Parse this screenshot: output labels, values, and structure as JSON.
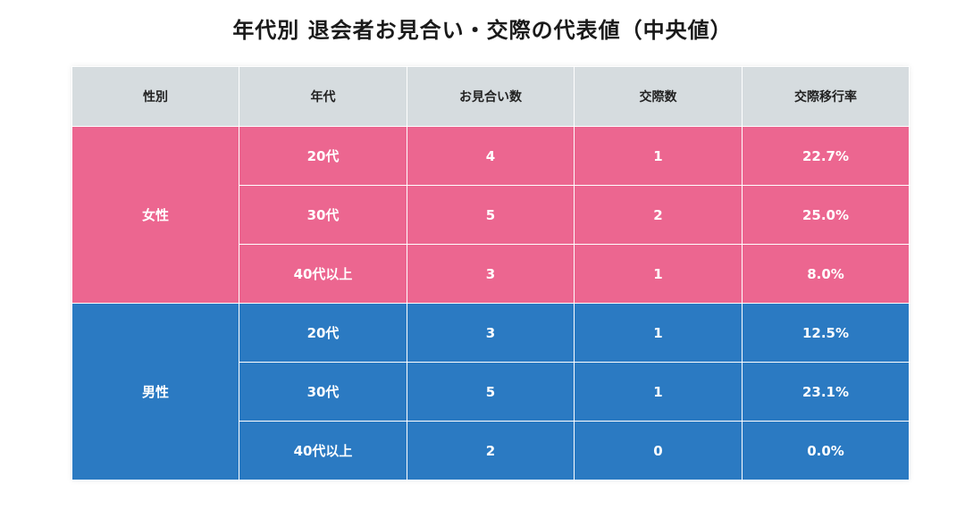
{
  "title": "年代別 退会者お見合い・交際の代表値（中央値）",
  "colors": {
    "header_bg": "#d6dcdf",
    "female": "#ec6690",
    "male": "#2b7ac2"
  },
  "chart_data": {
    "type": "table",
    "title": "年代別 退会者お見合い・交際の代表値（中央値）",
    "columns": [
      "性別",
      "年代",
      "お見合い数",
      "交際数",
      "交際移行率"
    ],
    "groups": [
      {
        "gender": "女性",
        "rows": [
          {
            "age": "20代",
            "omiai": "4",
            "kosai": "1",
            "rate": "22.7%"
          },
          {
            "age": "30代",
            "omiai": "5",
            "kosai": "2",
            "rate": "25.0%"
          },
          {
            "age": "40代以上",
            "omiai": "3",
            "kosai": "1",
            "rate": "8.0%"
          }
        ]
      },
      {
        "gender": "男性",
        "rows": [
          {
            "age": "20代",
            "omiai": "3",
            "kosai": "1",
            "rate": "12.5%"
          },
          {
            "age": "30代",
            "omiai": "5",
            "kosai": "1",
            "rate": "23.1%"
          },
          {
            "age": "40代以上",
            "omiai": "2",
            "kosai": "0",
            "rate": "0.0%"
          }
        ]
      }
    ]
  }
}
